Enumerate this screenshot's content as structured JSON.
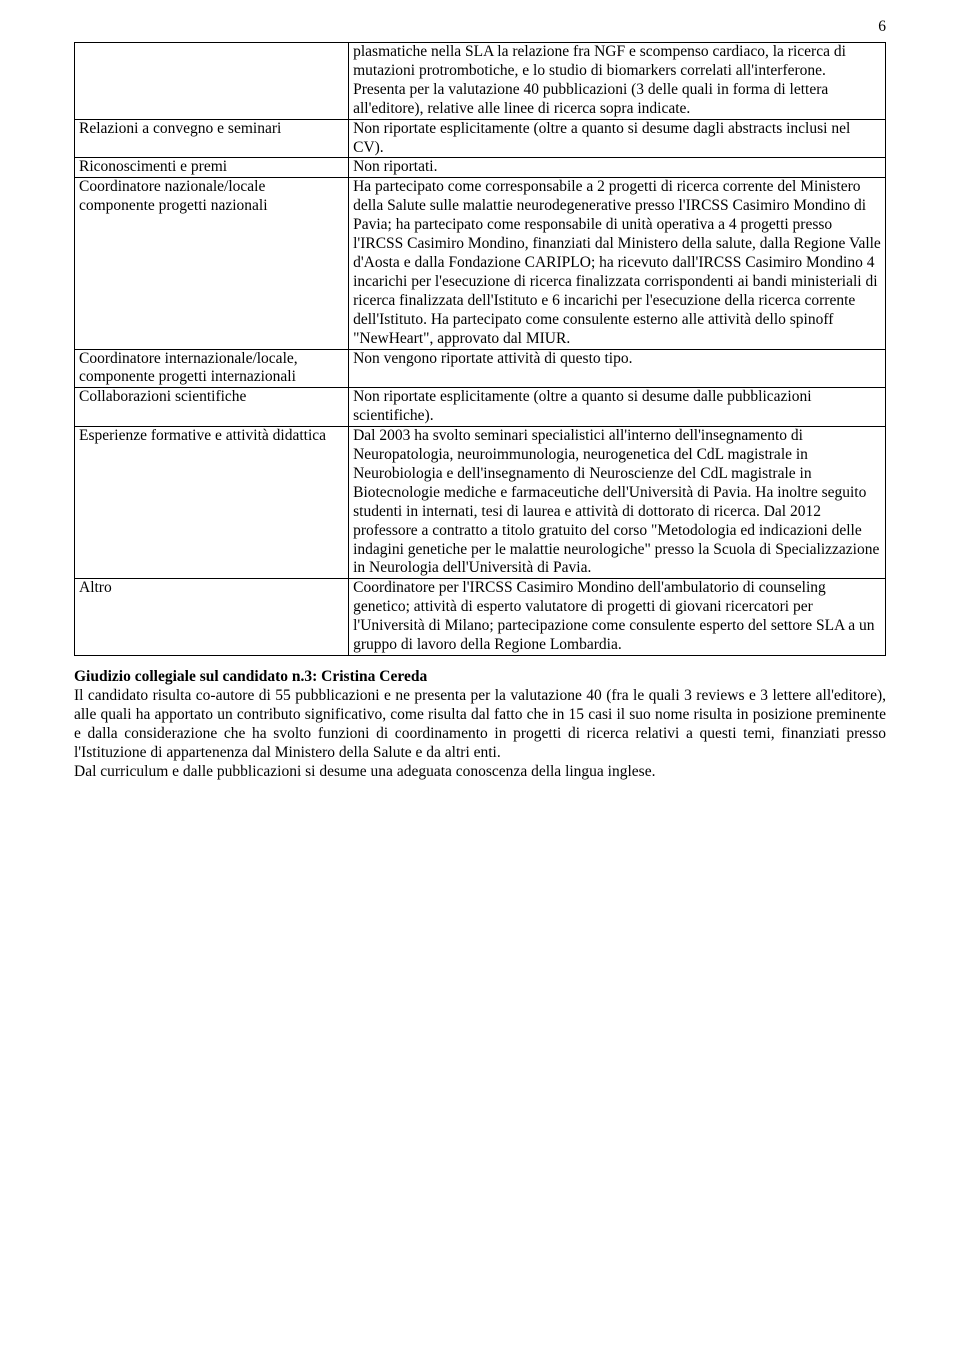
{
  "page_number": "6",
  "table": {
    "columns": {
      "left_width_pct": 33.8,
      "right_width_pct": 66.2
    },
    "rows": [
      {
        "left": "",
        "right": "plasmatiche nella SLA la relazione fra NGF e scompenso cardiaco, la ricerca di mutazioni protrombotiche, e lo studio di biomarkers correlati all'interferone. Presenta per la valutazione 40 pubblicazioni (3 delle quali in forma di lettera all'editore), relative alle linee di ricerca sopra indicate."
      },
      {
        "left": "Relazioni a convegno e seminari",
        "right": "Non riportate esplicitamente (oltre a quanto si desume dagli abstracts inclusi nel CV)."
      },
      {
        "left": "Riconoscimenti e premi",
        "right": "Non riportati."
      },
      {
        "left": "Coordinatore nazionale/locale componente progetti nazionali",
        "right": "Ha partecipato come corresponsabile a 2 progetti di ricerca corrente del Ministero della Salute sulle malattie neurodegenerative presso l'IRCSS Casimiro Mondino di Pavia; ha partecipato come responsabile di unità operativa a 4 progetti presso l'IRCSS Casimiro Mondino, finanziati dal Ministero della salute, dalla Regione Valle d'Aosta e dalla Fondazione CARIPLO; ha ricevuto dall'IRCSS Casimiro Mondino 4 incarichi per l'esecuzione di ricerca finalizzata corrispondenti ai bandi ministeriali di ricerca finalizzata dell'Istituto e 6 incarichi per l'esecuzione della ricerca corrente dell'Istituto. Ha partecipato come consulente esterno alle attività dello spinoff \"NewHeart\", approvato dal MIUR."
      },
      {
        "left": "Coordinatore internazionale/locale, componente progetti internazionali",
        "right": "Non vengono riportate attività di questo tipo."
      },
      {
        "left": "Collaborazioni scientifiche",
        "right": "Non riportate esplicitamente (oltre a quanto si desume dalle pubblicazioni scientifiche)."
      },
      {
        "left": "Esperienze formative e attività didattica",
        "right": "Dal 2003 ha svolto seminari specialistici all'interno dell'insegnamento di Neuropatologia, neuroimmunologia, neurogenetica del CdL magistrale in Neurobiologia  e dell'insegnamento di Neuroscienze del CdL magistrale in Biotecnologie mediche e farmaceutiche dell'Università di Pavia. Ha inoltre seguito studenti in internati, tesi di laurea e attività di dottorato di ricerca. Dal 2012 professore a contratto a titolo gratuito del corso \"Metodologia ed indicazioni delle indagini genetiche per le malattie neurologiche\" presso la Scuola di Specializzazione in Neurologia dell'Università di Pavia."
      },
      {
        "left": "Altro",
        "right": "Coordinatore per l'IRCSS Casimiro Mondino dell'ambulatorio di counseling genetico; attività di esperto valutatore di progetti di giovani ricercatori per l'Università di Milano; partecipazione come consulente esperto del settore SLA a un gruppo di lavoro della Regione Lombardia."
      }
    ]
  },
  "section": {
    "heading": "Giudizio collegiale sul candidato n.3: Cristina Cereda",
    "paragraph1": "Il candidato risulta co-autore di 55 pubblicazioni e ne presenta per la valutazione 40 (fra le quali 3 reviews e 3 lettere all'editore), alle quali ha apportato un contributo significativo, come risulta dal fatto che in 15 casi il suo nome risulta in posizione preminente e dalla considerazione che ha svolto funzioni di coordinamento in progetti di ricerca relativi a questi temi, finanziati presso l'Istituzione di appartenenza dal Ministero della Salute e da altri enti.",
    "paragraph2": "Dal curriculum e dalle pubblicazioni si desume una adeguata conoscenza della lingua inglese."
  }
}
